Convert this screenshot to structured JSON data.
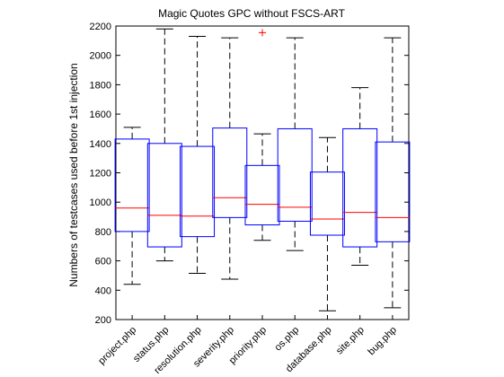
{
  "chart_data": {
    "type": "boxplot",
    "title": "Magic Quotes GPC without FSCS-ART",
    "xlabel": "",
    "ylabel": "Numbers of testcases used before 1st injection",
    "ylim": [
      200,
      2200
    ],
    "yticks": [
      200,
      400,
      600,
      800,
      1000,
      1200,
      1400,
      1600,
      1800,
      2000,
      2200
    ],
    "grid": false,
    "categories": [
      "project.php",
      "status.php",
      "resolution.php",
      "severity.php",
      "priority.php",
      "os.php",
      "database.php",
      "site.php",
      "bug.php"
    ],
    "boxes": [
      {
        "category": "project.php",
        "whisker_low": 440,
        "q1": 800,
        "median": 960,
        "q3": 1430,
        "whisker_high": 1510,
        "outliers": []
      },
      {
        "category": "status.php",
        "whisker_low": 600,
        "q1": 695,
        "median": 910,
        "q3": 1400,
        "whisker_high": 2180,
        "outliers": []
      },
      {
        "category": "resolution.php",
        "whisker_low": 515,
        "q1": 765,
        "median": 905,
        "q3": 1380,
        "whisker_high": 2130,
        "outliers": []
      },
      {
        "category": "severity.php",
        "whisker_low": 475,
        "q1": 895,
        "median": 1030,
        "q3": 1505,
        "whisker_high": 2120,
        "outliers": []
      },
      {
        "category": "priority.php",
        "whisker_low": 740,
        "q1": 845,
        "median": 985,
        "q3": 1250,
        "whisker_high": 1465,
        "outliers": [
          2155
        ]
      },
      {
        "category": "os.php",
        "whisker_low": 670,
        "q1": 870,
        "median": 965,
        "q3": 1500,
        "whisker_high": 2120,
        "outliers": []
      },
      {
        "category": "database.php",
        "whisker_low": 260,
        "q1": 775,
        "median": 885,
        "q3": 1205,
        "whisker_high": 1440,
        "outliers": []
      },
      {
        "category": "site.php",
        "whisker_low": 570,
        "q1": 695,
        "median": 930,
        "q3": 1500,
        "whisker_high": 1780,
        "outliers": []
      },
      {
        "category": "bug.php",
        "whisker_low": 280,
        "q1": 730,
        "median": 895,
        "q3": 1410,
        "whisker_high": 2120,
        "outliers": []
      }
    ],
    "colors": {
      "box": "#0000ff",
      "median": "#ff0000",
      "whisker": "#000000",
      "outlier": "#ff0000",
      "axes": "#000000"
    }
  }
}
